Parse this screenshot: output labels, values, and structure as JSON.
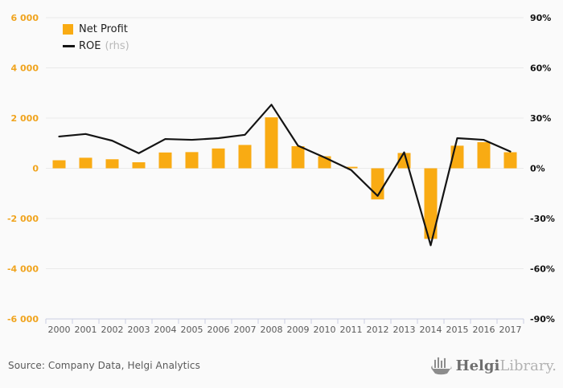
{
  "chart_data": {
    "type": "combo",
    "categories": [
      "2000",
      "2001",
      "2002",
      "2003",
      "2004",
      "2005",
      "2006",
      "2007",
      "2008",
      "2009",
      "2010",
      "2011",
      "2012",
      "2013",
      "2014",
      "2015",
      "2016",
      "2017"
    ],
    "series": [
      {
        "name": "Net Profit",
        "type": "bar",
        "axis": "left",
        "values": [
          320,
          420,
          360,
          240,
          630,
          645,
          790,
          930,
          2030,
          880,
          480,
          60,
          -1240,
          610,
          -2810,
          900,
          1040,
          640
        ]
      },
      {
        "name": "ROE",
        "type": "line",
        "axis": "right",
        "unit": "%",
        "values": [
          19,
          20.5,
          16.5,
          9,
          17.5,
          17,
          18,
          20,
          38,
          13.5,
          6.5,
          -1,
          -16.5,
          9.5,
          -46,
          18,
          17,
          10
        ]
      }
    ],
    "left_axis": {
      "min": -6000,
      "max": 6000,
      "tick_step": 2000,
      "tick_labels": [
        "6 000",
        "4 000",
        "2 000",
        "0",
        "-2 000",
        "-4 000",
        "-6 000"
      ]
    },
    "right_axis": {
      "min": -90,
      "max": 90,
      "tick_step": 30,
      "tick_labels": [
        "90%",
        "60%",
        "30%",
        "0%",
        "-30%",
        "-60%",
        "-90%"
      ]
    },
    "grid": true,
    "legend_position": "top-left",
    "title": "",
    "xlabel": "",
    "ylabel": ""
  },
  "legend": {
    "items": [
      {
        "label": "Net Profit",
        "suffix": ""
      },
      {
        "label": "ROE",
        "suffix": "(rhs)"
      }
    ]
  },
  "footer": {
    "source": "Source: Company Data, Helgi Analytics"
  },
  "logo": {
    "part1": "Helgi",
    "part2": "Library."
  },
  "colors": {
    "bar": "#F9AB13",
    "line": "#141414",
    "left_axis_label": "#F0A41E",
    "right_axis_label": "#111111",
    "year_label": "#595959",
    "grid": "#E9E9E9",
    "axis_line": "#C9CFE2",
    "background": "#FAFAFA",
    "source_text": "#595959",
    "legend_muted": "#B9B9B9",
    "logo_gray": "#8C8C8C"
  }
}
